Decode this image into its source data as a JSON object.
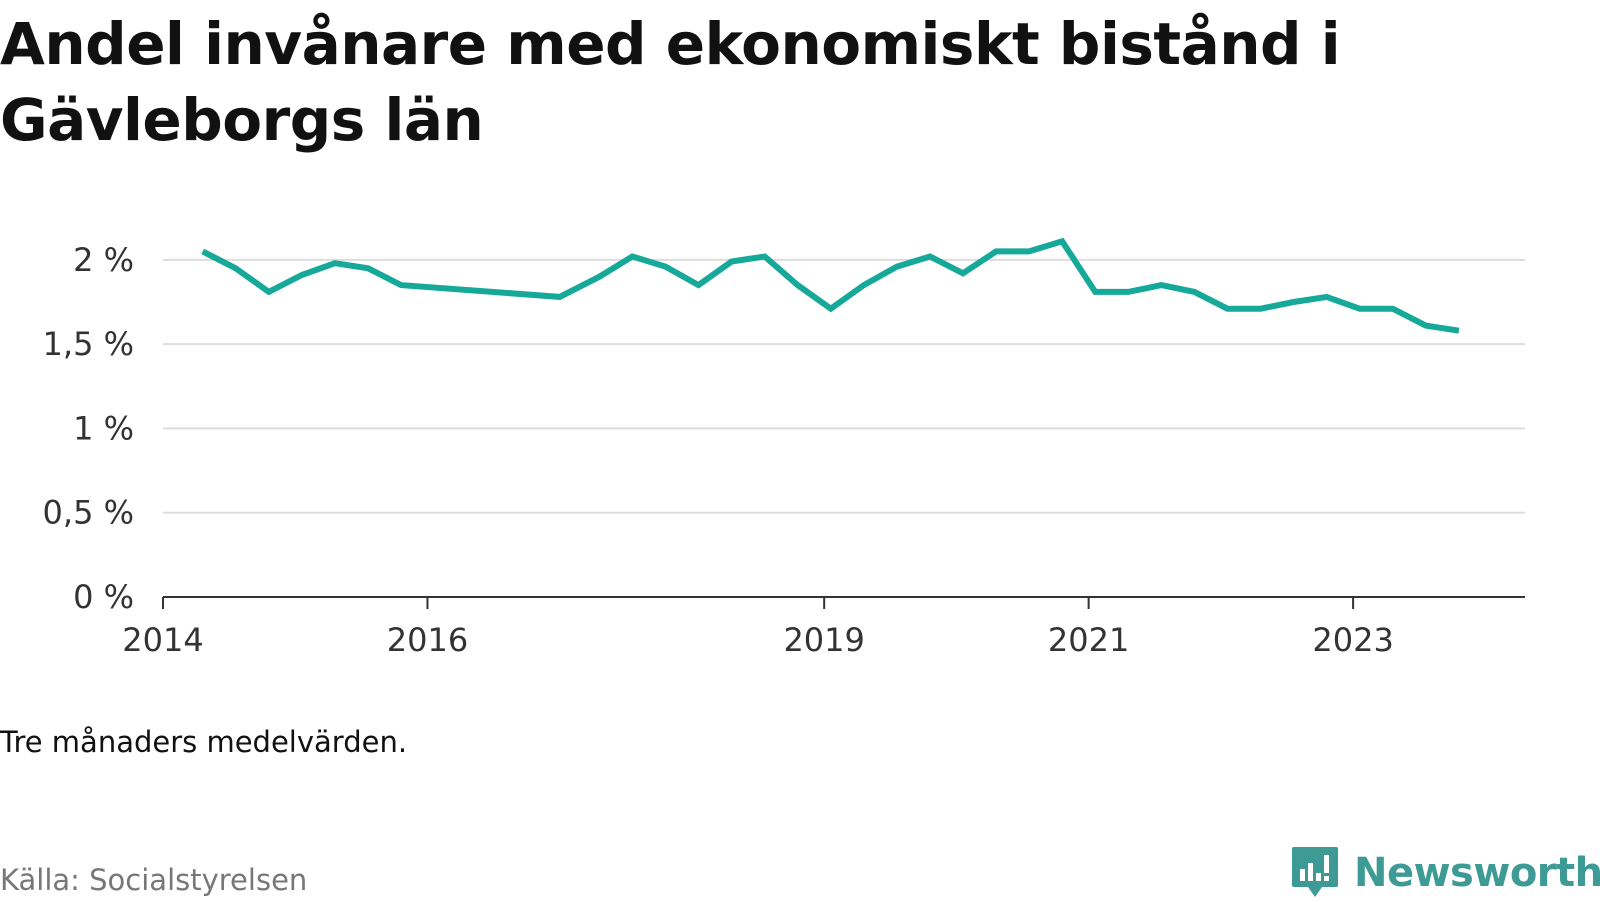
{
  "title": "Andel invånare med ekonomiskt bistånd i Gävleborgs län",
  "note": "Tre månaders medelvärden.",
  "source": "Källa: Socialstyrelsen",
  "brand": {
    "name": "Newsworthy",
    "icon": "newsworthy-logo-icon",
    "color": "#3d9a94"
  },
  "chart_data": {
    "type": "line",
    "title": "Andel invånare med ekonomiskt bistånd i Gävleborgs län",
    "xlabel": "",
    "ylabel": "",
    "ylim": [
      0,
      2.1
    ],
    "yticks": [
      0,
      0.5,
      1,
      1.5,
      2
    ],
    "ytick_labels": [
      "0 %",
      "0,5 %",
      "1 %",
      "1,5 %",
      "2 %"
    ],
    "xlim": [
      2014,
      2024.3
    ],
    "xticks": [
      2014,
      2016,
      2019,
      2021,
      2023
    ],
    "xtick_labels": [
      "2014",
      "2016",
      "2019",
      "2021",
      "2023"
    ],
    "grid": true,
    "legend": "none",
    "line_color": "#16a99a",
    "series": [
      {
        "x": [
          2014.3,
          2014.55,
          2014.8,
          2015.05,
          2015.3,
          2015.55,
          2015.8,
          2017.0,
          2017.3,
          2017.55,
          2017.8,
          2018.05,
          2018.3,
          2018.55,
          2018.8,
          2019.05,
          2019.3,
          2019.55,
          2019.8,
          2020.05,
          2020.3,
          2020.55,
          2020.8,
          2021.05,
          2021.3,
          2021.55,
          2021.8,
          2022.05,
          2022.3,
          2022.55,
          2022.8,
          2023.05,
          2023.3,
          2023.55,
          2023.8
        ],
        "values": [
          2.05,
          1.95,
          1.81,
          1.91,
          1.98,
          1.95,
          1.85,
          1.78,
          1.9,
          2.02,
          1.96,
          1.85,
          1.99,
          2.02,
          1.85,
          1.71,
          1.85,
          1.96,
          2.02,
          1.92,
          2.05,
          2.05,
          2.11,
          1.81,
          1.81,
          1.85,
          1.81,
          1.71,
          1.71,
          1.75,
          1.78,
          1.71,
          1.71,
          1.61,
          1.58
        ]
      }
    ]
  }
}
